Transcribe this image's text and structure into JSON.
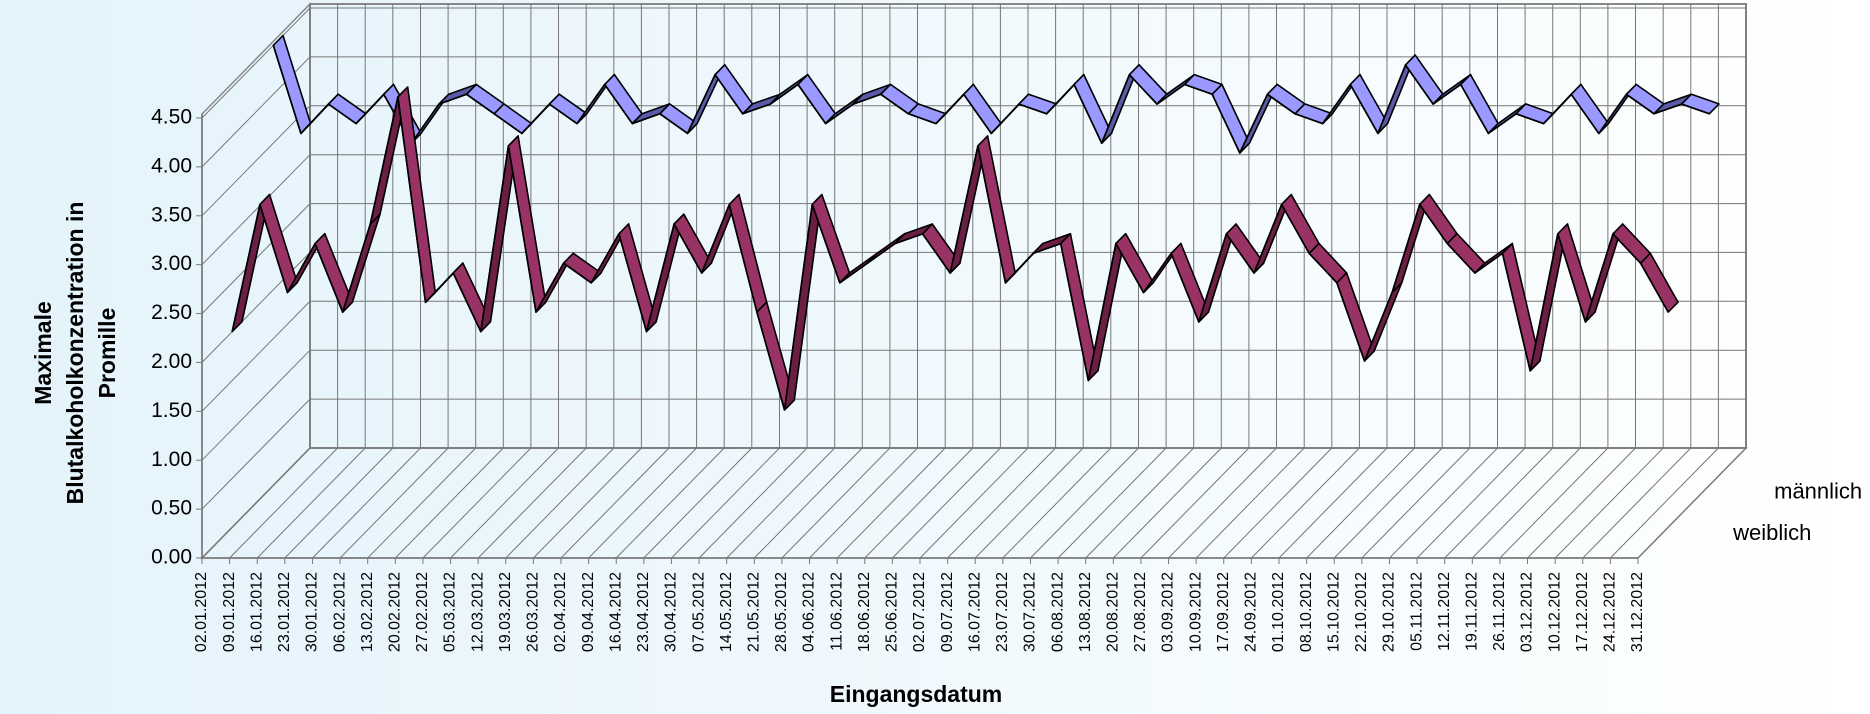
{
  "chart_data": {
    "type": "line3d",
    "y_axis_title": "Maximale Blutalkoholkonzentration in Promille",
    "x_axis_title": "Eingangsdatum",
    "categories": [
      "02.01.2012",
      "09.01.2012",
      "16.01.2012",
      "23.01.2012",
      "30.01.2012",
      "06.02.2012",
      "13.02.2012",
      "20.02.2012",
      "27.02.2012",
      "05.03.2012",
      "12.03.2012",
      "19.03.2012",
      "26.03.2012",
      "02.04.2012",
      "09.04.2012",
      "16.04.2012",
      "23.04.2012",
      "30.04.2012",
      "07.05.2012",
      "14.05.2012",
      "21.05.2012",
      "28.05.2012",
      "04.06.2012",
      "11.06.2012",
      "18.06.2012",
      "25.06.2012",
      "02.07.2012",
      "09.07.2012",
      "16.07.2012",
      "23.07.2012",
      "30.07.2012",
      "06.08.2012",
      "13.08.2012",
      "20.08.2012",
      "27.08.2012",
      "03.09.2012",
      "10.09.2012",
      "17.09.2012",
      "24.09.2012",
      "01.10.2012",
      "08.10.2012",
      "15.10.2012",
      "22.10.2012",
      "29.10.2012",
      "05.11.2012",
      "12.11.2012",
      "19.11.2012",
      "26.11.2012",
      "03.12.2012",
      "10.12.2012",
      "17.12.2012",
      "24.12.2012",
      "31.12.2012"
    ],
    "series": [
      {
        "name": "männlich",
        "color": "#9999ff",
        "values": [
          4.5,
          3.6,
          3.9,
          3.7,
          4.0,
          3.5,
          3.9,
          4.0,
          3.8,
          3.6,
          3.9,
          3.7,
          4.1,
          3.7,
          3.8,
          3.6,
          4.2,
          3.8,
          3.9,
          4.1,
          3.7,
          3.9,
          4.0,
          3.8,
          3.7,
          4.0,
          3.6,
          3.9,
          3.8,
          4.1,
          3.5,
          4.2,
          3.9,
          4.1,
          4.0,
          3.4,
          4.0,
          3.8,
          3.7,
          4.1,
          3.6,
          4.3,
          3.9,
          4.1,
          3.6,
          3.8,
          3.7,
          4.0,
          3.6,
          4.0,
          3.8,
          3.9,
          3.8
        ]
      },
      {
        "name": "weiblich",
        "color": "#993366",
        "values": [
          2.0,
          3.3,
          2.4,
          2.9,
          2.2,
          3.1,
          4.4,
          2.3,
          2.6,
          2.0,
          3.9,
          2.2,
          2.7,
          2.5,
          3.0,
          2.0,
          3.1,
          2.6,
          3.3,
          2.2,
          1.2,
          3.3,
          2.5,
          2.7,
          2.9,
          3.0,
          2.6,
          3.9,
          2.5,
          2.8,
          2.9,
          1.5,
          2.9,
          2.4,
          2.8,
          2.1,
          3.0,
          2.6,
          3.3,
          2.8,
          2.5,
          1.7,
          2.4,
          3.3,
          2.9,
          2.6,
          2.8,
          1.6,
          3.0,
          2.1,
          3.0,
          2.7,
          2.2
        ]
      }
    ],
    "ylim": [
      0,
      4.5
    ],
    "yticks": [
      {
        "value": 0,
        "label": "0.00"
      },
      {
        "value": 0.5,
        "label": "0.50"
      },
      {
        "value": 1,
        "label": "1.00"
      },
      {
        "value": 1.5,
        "label": "1.50"
      },
      {
        "value": 2,
        "label": "2.00"
      },
      {
        "value": 2.5,
        "label": "2.50"
      },
      {
        "value": 3,
        "label": "3.00"
      },
      {
        "value": 3.5,
        "label": "3.50"
      },
      {
        "value": 4,
        "label": "4.00"
      },
      {
        "value": 4.5,
        "label": "4.50"
      }
    ],
    "grid": true
  }
}
